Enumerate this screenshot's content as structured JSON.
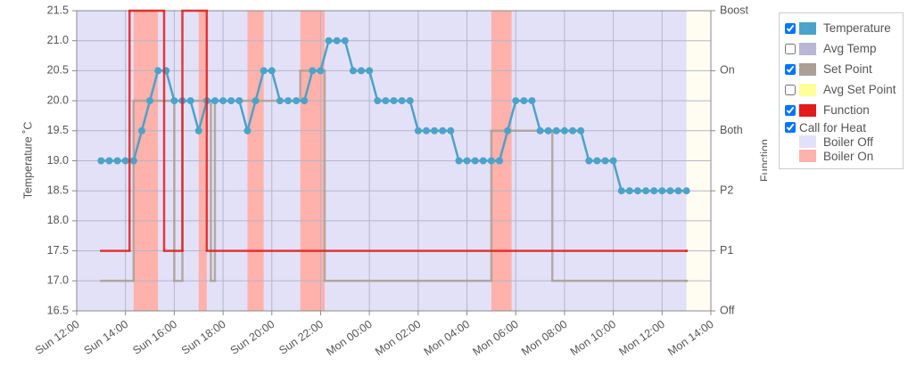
{
  "chart_data": {
    "type": "line",
    "y_label": "Temperature ˚C",
    "y2_label": "Function",
    "xlim": [
      "Sun 12:00",
      "Mon 14:00"
    ],
    "xticks": [
      "Sun 12:00",
      "Sun 14:00",
      "Sun 16:00",
      "Sun 18:00",
      "Sun 20:00",
      "Sun 22:00",
      "Mon 00:00",
      "Mon 02:00",
      "Mon 04:00",
      "Mon 06:00",
      "Mon 08:00",
      "Mon 10:00",
      "Mon 12:00",
      "Mon 14:00"
    ],
    "ylim": [
      16.5,
      21.5
    ],
    "yticks": [
      16.5,
      {
        "value": 17,
        "label": "17.0"
      },
      17.5,
      {
        "value": 18,
        "label": "18.0"
      },
      18.5,
      {
        "value": 19,
        "label": "19.0"
      },
      19.5,
      {
        "value": 20,
        "label": "20.0"
      },
      20.5,
      {
        "value": 21,
        "label": "21.0"
      },
      21.5
    ],
    "y2lim": [
      0,
      5
    ],
    "y2ticks": [
      {
        "value": 0,
        "label": "Off"
      },
      {
        "value": 1,
        "label": "P1"
      },
      {
        "value": 2,
        "label": "P2"
      },
      {
        "value": 3,
        "label": "Both"
      },
      {
        "value": 4,
        "label": "On"
      },
      {
        "value": 5,
        "label": "Boost"
      }
    ],
    "grid": true,
    "series": [
      {
        "name": "Temperature",
        "color": "#4ba3c9",
        "markers": true,
        "step": false,
        "checked": true,
        "x": [
          "Sun 13:00",
          "Sun 13:20",
          "Sun 13:40",
          "Sun 14:00",
          "Sun 14:20",
          "Sun 14:40",
          "Sun 15:00",
          "Sun 15:20",
          "Sun 15:40",
          "Sun 16:00",
          "Sun 16:20",
          "Sun 16:40",
          "Sun 17:00",
          "Sun 17:20",
          "Sun 17:40",
          "Sun 18:00",
          "Sun 18:20",
          "Sun 18:40",
          "Sun 19:00",
          "Sun 19:20",
          "Sun 19:40",
          "Sun 20:00",
          "Sun 20:20",
          "Sun 20:40",
          "Sun 21:00",
          "Sun 21:20",
          "Sun 21:40",
          "Sun 22:00",
          "Sun 22:20",
          "Sun 22:40",
          "Sun 23:00",
          "Sun 23:20",
          "Sun 23:40",
          "Mon 00:00",
          "Mon 00:20",
          "Mon 00:40",
          "Mon 01:00",
          "Mon 01:20",
          "Mon 01:40",
          "Mon 02:00",
          "Mon 02:20",
          "Mon 02:40",
          "Mon 03:00",
          "Mon 03:20",
          "Mon 03:40",
          "Mon 04:00",
          "Mon 04:20",
          "Mon 04:40",
          "Mon 05:00",
          "Mon 05:20",
          "Mon 05:40",
          "Mon 06:00",
          "Mon 06:20",
          "Mon 06:40",
          "Mon 07:00",
          "Mon 07:20",
          "Mon 07:40",
          "Mon 08:00",
          "Mon 08:20",
          "Mon 08:40",
          "Mon 09:00",
          "Mon 09:20",
          "Mon 09:40",
          "Mon 10:00",
          "Mon 10:20",
          "Mon 10:40",
          "Mon 11:00",
          "Mon 11:20",
          "Mon 11:40",
          "Mon 12:00",
          "Mon 12:20",
          "Mon 12:40",
          "Mon 13:00"
        ],
        "values": [
          19,
          19,
          19,
          19,
          19,
          19.5,
          20,
          20.5,
          20.5,
          20,
          20,
          20,
          19.5,
          20,
          20,
          20,
          20,
          20,
          19.5,
          20,
          20.5,
          20.5,
          20,
          20,
          20,
          20,
          20.5,
          20.5,
          21,
          21,
          21,
          20.5,
          20.5,
          20.5,
          20,
          20,
          20,
          20,
          20,
          19.5,
          19.5,
          19.5,
          19.5,
          19.5,
          19,
          19,
          19,
          19,
          19,
          19,
          19.5,
          20,
          20,
          20,
          19.5,
          19.5,
          19.5,
          19.5,
          19.5,
          19.5,
          19,
          19,
          19,
          19,
          18.5,
          18.5,
          18.5,
          18.5,
          18.5,
          18.5,
          18.5,
          18.5,
          18.5
        ]
      },
      {
        "name": "Avg Temp",
        "color": "#b9b6d6",
        "checked": false
      },
      {
        "name": "Set Point",
        "color": "#aba095",
        "markers": false,
        "step": true,
        "checked": true,
        "x": [
          "Sun 13:00",
          "Sun 14:20",
          "Sun 16:00",
          "Sun 16:20",
          "Sun 17:30",
          "Sun 17:40",
          "Sun 21:10",
          "Sun 22:10",
          "Mon 05:00",
          "Mon 07:30",
          "Mon 13:00"
        ],
        "values": [
          17,
          20,
          17,
          20,
          17,
          20,
          20.5,
          17,
          19.5,
          17,
          17
        ]
      },
      {
        "name": "Avg Set Point",
        "color": "#ffff99",
        "checked": false
      },
      {
        "name": "Function",
        "color": "#e41b1b",
        "markers": false,
        "step": true,
        "axis": "y2",
        "checked": true,
        "x": [
          "Sun 13:00",
          "Sun 14:10",
          "Sun 15:35",
          "Sun 16:20",
          "Sun 17:20",
          "Mon 13:00"
        ],
        "values": [
          1,
          5,
          1,
          5,
          1,
          1
        ]
      }
    ],
    "call_for_heat": {
      "name": "Call for Heat",
      "checked": true,
      "off": {
        "name": "Boiler Off",
        "color": "#e3e1f8"
      },
      "on": {
        "name": "Boiler On",
        "color": "#ffb1ab"
      },
      "on_intervals": [
        [
          "Sun 14:20",
          "Sun 15:20"
        ],
        [
          "Sun 17:00",
          "Sun 17:20"
        ],
        [
          "Sun 19:00",
          "Sun 19:40"
        ],
        [
          "Sun 21:10",
          "Sun 22:10"
        ],
        [
          "Mon 05:00",
          "Mon 05:50"
        ]
      ]
    }
  }
}
